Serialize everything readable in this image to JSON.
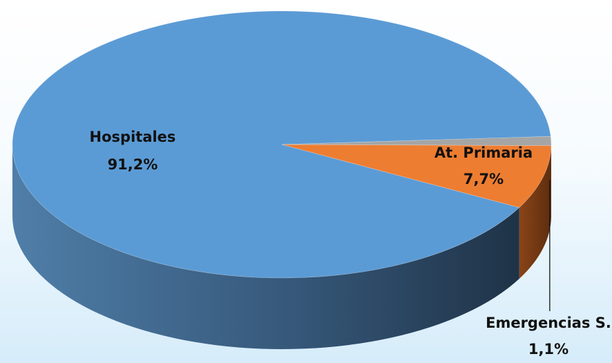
{
  "chart_data": {
    "type": "pie",
    "style": "3d",
    "title": "",
    "slices": [
      {
        "label": "Hospitales",
        "value": 91.2,
        "value_label": "91,2%",
        "color": "#5b9bd5"
      },
      {
        "label": "At. Primaria",
        "value": 7.7,
        "value_label": "7,7%",
        "color": "#ed7d31"
      },
      {
        "label": "Emergencias S.",
        "value": 1.1,
        "value_label": "1,1%",
        "color": "#a5a5a5"
      }
    ],
    "legend": "none",
    "data_labels": "label-and-percent"
  }
}
